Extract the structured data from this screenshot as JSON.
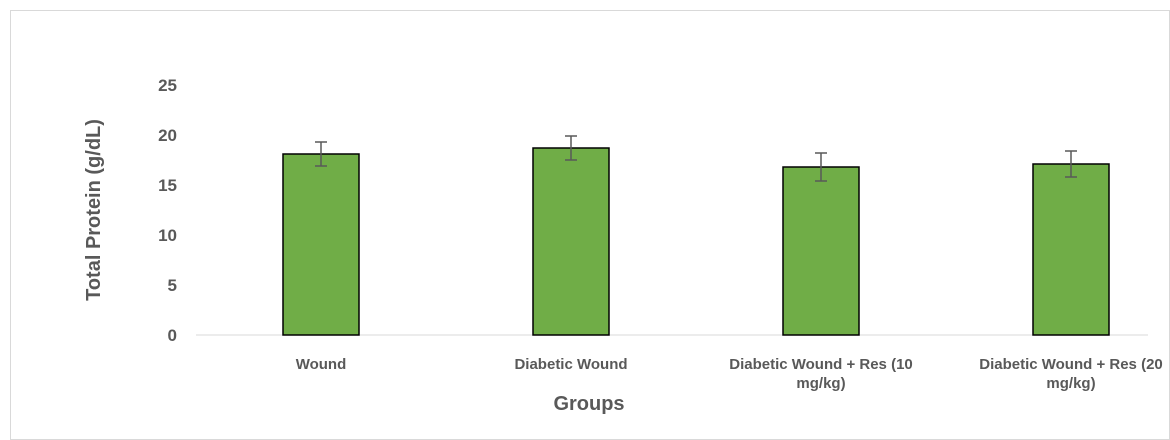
{
  "chart_data": {
    "type": "bar",
    "categories": [
      "Wound",
      "Diabetic Wound",
      "Diabetic Wound + Res (10 mg/kg)",
      "Diabetic Wound + Res (20 mg/kg)"
    ],
    "category_lines": [
      [
        "Wound"
      ],
      [
        "Diabetic Wound"
      ],
      [
        "Diabetic Wound + Res (10",
        "mg/kg)"
      ],
      [
        "Diabetic Wound + Res (20",
        "mg/kg)"
      ]
    ],
    "values": [
      18.1,
      18.7,
      16.8,
      17.1
    ],
    "errors": [
      1.2,
      1.2,
      1.4,
      1.3
    ],
    "xlabel": "Groups",
    "ylabel": "Total Protein (g/dL)",
    "ylim": [
      0,
      25
    ],
    "yticks": [
      "0",
      "5",
      "10",
      "15",
      "20",
      "25"
    ],
    "grid": false,
    "legend": "none",
    "bar_color": "#70ad47",
    "bar_edge_color": "#000000",
    "error_bar_color": "#595959",
    "axis_color": "#d9d9d9"
  }
}
